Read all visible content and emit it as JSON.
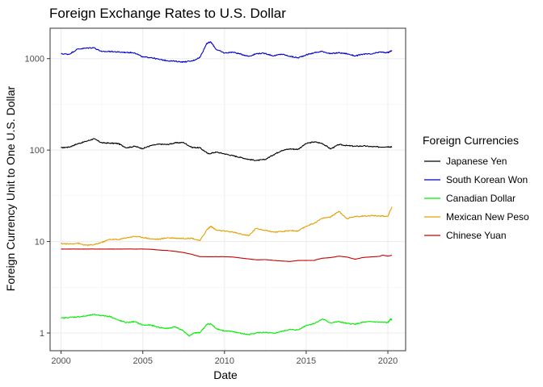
{
  "chart_data": {
    "type": "line",
    "title": "Foreign Exchange Rates to U.S. Dollar",
    "xlabel": "Date",
    "ylabel": "Foreign Currency Unit to One U.S. Dollar",
    "x_scale": "date",
    "y_scale": "log10",
    "xlim": [
      "1999-05-01",
      "2021-02-01"
    ],
    "ylim": [
      0.64,
      2150
    ],
    "x_ticks": [
      "2000",
      "2005",
      "2010",
      "2015",
      "2020"
    ],
    "y_ticks": [
      1,
      10,
      100,
      1000
    ],
    "y_tick_labels": [
      "1",
      "10",
      "100",
      "1000"
    ],
    "grid": true,
    "legend": {
      "title": "Foreign Currencies",
      "placement": "right"
    },
    "series": [
      {
        "name": "Japanese Yen",
        "color": "#000000",
        "points": [
          [
            "2000-01-01",
            106
          ],
          [
            "2000-07-01",
            108
          ],
          [
            "2001-01-01",
            117
          ],
          [
            "2001-07-01",
            124
          ],
          [
            "2002-01-01",
            133
          ],
          [
            "2002-07-01",
            120
          ],
          [
            "2003-01-01",
            119
          ],
          [
            "2003-07-01",
            118
          ],
          [
            "2004-01-01",
            106
          ],
          [
            "2004-07-01",
            110
          ],
          [
            "2005-01-01",
            104
          ],
          [
            "2005-07-01",
            112
          ],
          [
            "2006-01-01",
            116
          ],
          [
            "2006-07-01",
            115
          ],
          [
            "2007-01-01",
            120
          ],
          [
            "2007-07-01",
            121
          ],
          [
            "2008-01-01",
            107
          ],
          [
            "2008-07-01",
            106
          ],
          [
            "2009-01-01",
            91
          ],
          [
            "2009-07-01",
            95
          ],
          [
            "2010-01-01",
            91
          ],
          [
            "2010-07-01",
            87
          ],
          [
            "2011-01-01",
            83
          ],
          [
            "2011-07-01",
            79
          ],
          [
            "2012-01-01",
            77
          ],
          [
            "2012-07-01",
            79
          ],
          [
            "2013-01-01",
            89
          ],
          [
            "2013-07-01",
            99
          ],
          [
            "2014-01-01",
            103
          ],
          [
            "2014-07-01",
            102
          ],
          [
            "2015-01-01",
            118
          ],
          [
            "2015-07-01",
            123
          ],
          [
            "2016-01-01",
            118
          ],
          [
            "2016-07-01",
            103
          ],
          [
            "2017-01-01",
            115
          ],
          [
            "2017-07-01",
            112
          ],
          [
            "2018-01-01",
            110
          ],
          [
            "2018-07-01",
            111
          ],
          [
            "2019-01-01",
            109
          ],
          [
            "2019-07-01",
            108
          ],
          [
            "2020-01-01",
            109
          ],
          [
            "2020-04-01",
            108
          ]
        ]
      },
      {
        "name": "South Korean Won",
        "color": "#0000cc",
        "points": [
          [
            "2000-01-01",
            1130
          ],
          [
            "2000-07-01",
            1116
          ],
          [
            "2001-01-01",
            1270
          ],
          [
            "2001-07-01",
            1300
          ],
          [
            "2002-01-01",
            1320
          ],
          [
            "2002-07-01",
            1190
          ],
          [
            "2003-01-01",
            1200
          ],
          [
            "2003-07-01",
            1180
          ],
          [
            "2004-01-01",
            1170
          ],
          [
            "2004-07-01",
            1160
          ],
          [
            "2005-01-01",
            1040
          ],
          [
            "2005-07-01",
            1030
          ],
          [
            "2006-01-01",
            980
          ],
          [
            "2006-07-01",
            950
          ],
          [
            "2007-01-01",
            935
          ],
          [
            "2007-07-01",
            920
          ],
          [
            "2008-01-01",
            940
          ],
          [
            "2008-07-01",
            1030
          ],
          [
            "2008-12-01",
            1470
          ],
          [
            "2009-03-01",
            1520
          ],
          [
            "2009-07-01",
            1260
          ],
          [
            "2010-01-01",
            1150
          ],
          [
            "2010-07-01",
            1180
          ],
          [
            "2011-01-01",
            1120
          ],
          [
            "2011-07-01",
            1060
          ],
          [
            "2012-01-01",
            1140
          ],
          [
            "2012-07-01",
            1140
          ],
          [
            "2013-01-01",
            1070
          ],
          [
            "2013-07-01",
            1120
          ],
          [
            "2014-01-01",
            1060
          ],
          [
            "2014-07-01",
            1020
          ],
          [
            "2015-01-01",
            1100
          ],
          [
            "2015-07-01",
            1160
          ],
          [
            "2016-01-01",
            1200
          ],
          [
            "2016-07-01",
            1130
          ],
          [
            "2017-01-01",
            1160
          ],
          [
            "2017-07-01",
            1130
          ],
          [
            "2018-01-01",
            1070
          ],
          [
            "2018-07-01",
            1120
          ],
          [
            "2019-01-01",
            1120
          ],
          [
            "2019-07-01",
            1180
          ],
          [
            "2020-01-01",
            1160
          ],
          [
            "2020-04-01",
            1230
          ]
        ]
      },
      {
        "name": "Canadian Dollar",
        "color": "#00ee00",
        "points": [
          [
            "2000-01-01",
            1.45
          ],
          [
            "2000-07-01",
            1.48
          ],
          [
            "2001-01-01",
            1.5
          ],
          [
            "2001-07-01",
            1.53
          ],
          [
            "2002-01-01",
            1.59
          ],
          [
            "2002-07-01",
            1.55
          ],
          [
            "2003-01-01",
            1.52
          ],
          [
            "2003-07-01",
            1.38
          ],
          [
            "2004-01-01",
            1.3
          ],
          [
            "2004-07-01",
            1.33
          ],
          [
            "2005-01-01",
            1.22
          ],
          [
            "2005-07-01",
            1.22
          ],
          [
            "2006-01-01",
            1.15
          ],
          [
            "2006-07-01",
            1.12
          ],
          [
            "2007-01-01",
            1.17
          ],
          [
            "2007-07-01",
            1.05
          ],
          [
            "2007-11-01",
            0.93
          ],
          [
            "2008-03-01",
            1.0
          ],
          [
            "2008-07-01",
            1.01
          ],
          [
            "2008-12-01",
            1.24
          ],
          [
            "2009-03-01",
            1.26
          ],
          [
            "2009-07-01",
            1.12
          ],
          [
            "2010-01-01",
            1.05
          ],
          [
            "2010-07-01",
            1.04
          ],
          [
            "2011-01-01",
            0.99
          ],
          [
            "2011-07-01",
            0.96
          ],
          [
            "2012-01-01",
            1.01
          ],
          [
            "2012-07-01",
            1.01
          ],
          [
            "2013-01-01",
            0.99
          ],
          [
            "2013-07-01",
            1.04
          ],
          [
            "2014-01-01",
            1.09
          ],
          [
            "2014-07-01",
            1.08
          ],
          [
            "2015-01-01",
            1.21
          ],
          [
            "2015-07-01",
            1.27
          ],
          [
            "2016-01-01",
            1.42
          ],
          [
            "2016-07-01",
            1.29
          ],
          [
            "2017-01-01",
            1.33
          ],
          [
            "2017-07-01",
            1.27
          ],
          [
            "2018-01-01",
            1.25
          ],
          [
            "2018-07-01",
            1.31
          ],
          [
            "2019-01-01",
            1.33
          ],
          [
            "2019-07-01",
            1.31
          ],
          [
            "2020-01-01",
            1.3
          ],
          [
            "2020-03-01",
            1.42
          ],
          [
            "2020-04-01",
            1.4
          ]
        ]
      },
      {
        "name": "Mexican New Peso",
        "color": "#e69f00",
        "points": [
          [
            "2000-01-01",
            9.5
          ],
          [
            "2000-07-01",
            9.4
          ],
          [
            "2001-01-01",
            9.6
          ],
          [
            "2001-07-01",
            9.1
          ],
          [
            "2002-01-01",
            9.2
          ],
          [
            "2002-07-01",
            9.8
          ],
          [
            "2003-01-01",
            10.6
          ],
          [
            "2003-07-01",
            10.5
          ],
          [
            "2004-01-01",
            11.0
          ],
          [
            "2004-07-01",
            11.4
          ],
          [
            "2005-01-01",
            11.1
          ],
          [
            "2005-07-01",
            10.7
          ],
          [
            "2006-01-01",
            10.6
          ],
          [
            "2006-07-01",
            11.0
          ],
          [
            "2007-01-01",
            10.9
          ],
          [
            "2007-07-01",
            10.8
          ],
          [
            "2008-01-01",
            10.9
          ],
          [
            "2008-07-01",
            10.2
          ],
          [
            "2008-12-01",
            13.4
          ],
          [
            "2009-03-01",
            14.7
          ],
          [
            "2009-07-01",
            13.3
          ],
          [
            "2010-01-01",
            13.0
          ],
          [
            "2010-07-01",
            12.7
          ],
          [
            "2011-01-01",
            12.1
          ],
          [
            "2011-07-01",
            11.6
          ],
          [
            "2011-12-01",
            13.9
          ],
          [
            "2012-07-01",
            13.3
          ],
          [
            "2013-01-01",
            12.7
          ],
          [
            "2013-07-01",
            12.8
          ],
          [
            "2014-01-01",
            13.2
          ],
          [
            "2014-07-01",
            13.0
          ],
          [
            "2015-01-01",
            14.7
          ],
          [
            "2015-07-01",
            15.9
          ],
          [
            "2016-01-01",
            18.0
          ],
          [
            "2016-07-01",
            18.6
          ],
          [
            "2017-01-01",
            21.4
          ],
          [
            "2017-07-01",
            17.8
          ],
          [
            "2018-01-01",
            18.8
          ],
          [
            "2018-07-01",
            19.0
          ],
          [
            "2019-01-01",
            19.2
          ],
          [
            "2019-07-01",
            19.0
          ],
          [
            "2020-01-01",
            18.9
          ],
          [
            "2020-04-01",
            24.0
          ]
        ]
      },
      {
        "name": "Chinese Yuan",
        "color": "#cc0000",
        "points": [
          [
            "2000-01-01",
            8.28
          ],
          [
            "2001-01-01",
            8.28
          ],
          [
            "2002-01-01",
            8.28
          ],
          [
            "2003-01-01",
            8.28
          ],
          [
            "2004-01-01",
            8.28
          ],
          [
            "2005-01-01",
            8.28
          ],
          [
            "2005-07-01",
            8.23
          ],
          [
            "2006-01-01",
            8.07
          ],
          [
            "2006-07-01",
            7.99
          ],
          [
            "2007-01-01",
            7.8
          ],
          [
            "2007-07-01",
            7.58
          ],
          [
            "2008-01-01",
            7.24
          ],
          [
            "2008-07-01",
            6.83
          ],
          [
            "2009-01-01",
            6.83
          ],
          [
            "2010-01-01",
            6.83
          ],
          [
            "2010-07-01",
            6.77
          ],
          [
            "2011-01-01",
            6.6
          ],
          [
            "2011-07-01",
            6.45
          ],
          [
            "2012-01-01",
            6.3
          ],
          [
            "2012-07-01",
            6.35
          ],
          [
            "2013-01-01",
            6.22
          ],
          [
            "2013-07-01",
            6.13
          ],
          [
            "2014-01-01",
            6.05
          ],
          [
            "2014-07-01",
            6.2
          ],
          [
            "2015-01-01",
            6.21
          ],
          [
            "2015-07-01",
            6.21
          ],
          [
            "2015-09-01",
            6.37
          ],
          [
            "2016-01-01",
            6.57
          ],
          [
            "2016-07-01",
            6.67
          ],
          [
            "2017-01-01",
            6.92
          ],
          [
            "2017-07-01",
            6.77
          ],
          [
            "2018-01-01",
            6.4
          ],
          [
            "2018-07-01",
            6.7
          ],
          [
            "2019-01-01",
            6.8
          ],
          [
            "2019-07-01",
            6.88
          ],
          [
            "2019-09-01",
            7.1
          ],
          [
            "2020-01-01",
            6.92
          ],
          [
            "2020-04-01",
            7.08
          ]
        ]
      }
    ]
  }
}
